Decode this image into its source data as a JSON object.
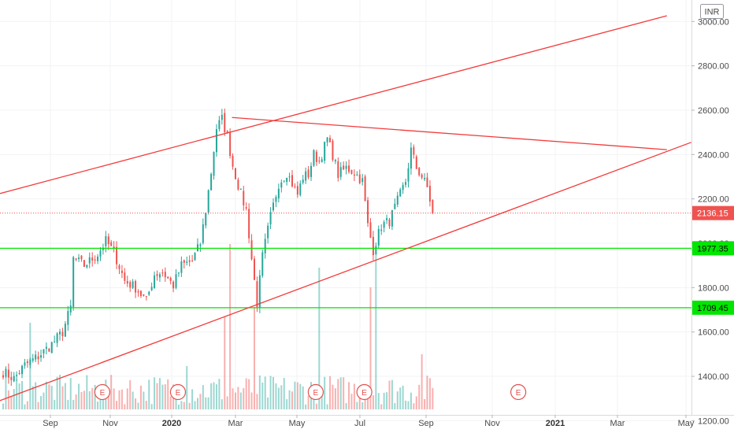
{
  "currency_badge": "INR",
  "chart_data": {
    "type": "candlestick",
    "y_axis": {
      "range": [
        1180,
        3040
      ],
      "ticks": [
        "1200.00",
        "1400.00",
        "1600.00",
        "1800.00",
        "2000.00",
        "2200.00",
        "2400.00",
        "2600.00",
        "2800.00",
        "3000.00"
      ]
    },
    "x_axis": {
      "labels": [
        {
          "text": "Sep",
          "bold": false
        },
        {
          "text": "Nov",
          "bold": false
        },
        {
          "text": "2020",
          "bold": true
        },
        {
          "text": "Mar",
          "bold": false
        },
        {
          "text": "May",
          "bold": false
        },
        {
          "text": "Jul",
          "bold": false
        },
        {
          "text": "Sep",
          "bold": false
        },
        {
          "text": "Nov",
          "bold": false
        },
        {
          "text": "2021",
          "bold": true
        },
        {
          "text": "Mar",
          "bold": false
        },
        {
          "text": "May",
          "bold": false
        }
      ]
    },
    "last_price": {
      "value": 2136.15,
      "label": "2136.15",
      "color": "#ef5350"
    },
    "horizontal_levels": [
      {
        "value": 1977.35,
        "label": "1977.35",
        "color": "#00e600"
      },
      {
        "value": 1709.45,
        "label": "1709.45",
        "color": "#00e600"
      }
    ],
    "trendlines": [
      {
        "name": "upper channel",
        "from": [
          -1,
          2224
        ],
        "to": [
          246,
          3026
        ],
        "color": "#f23b3b"
      },
      {
        "name": "lower channel",
        "from": [
          -1,
          1290
        ],
        "to": [
          255,
          2455
        ],
        "color": "#f23b3b"
      },
      {
        "name": "descending resistance",
        "from": [
          85,
          2567
        ],
        "to": [
          246,
          2422
        ],
        "color": "#f23b3b"
      }
    ],
    "earnings_markers": [
      {
        "label": "E",
        "x": 37
      },
      {
        "label": "E",
        "x": 65
      },
      {
        "label": "E",
        "x": 116
      },
      {
        "label": "E",
        "x": 134
      },
      {
        "label": "E",
        "x": 191
      }
    ],
    "volume_spikes": [
      {
        "x": 10,
        "value": 220
      },
      {
        "x": 68,
        "value": 110
      },
      {
        "x": 82,
        "value": 235
      },
      {
        "x": 84,
        "value": 420
      },
      {
        "x": 93,
        "value": 260
      },
      {
        "x": 117,
        "value": 360
      },
      {
        "x": 136,
        "value": 310
      },
      {
        "x": 138,
        "value": 390
      },
      {
        "x": 155,
        "value": 140
      }
    ],
    "price_path": [
      [
        0,
        1420
      ],
      [
        4,
        1390
      ],
      [
        8,
        1450
      ],
      [
        13,
        1490
      ],
      [
        18,
        1545
      ],
      [
        22,
        1600
      ],
      [
        25,
        1710
      ],
      [
        26,
        1930
      ],
      [
        30,
        1900
      ],
      [
        35,
        1950
      ],
      [
        38,
        2010
      ],
      [
        41,
        1960
      ],
      [
        45,
        1830
      ],
      [
        49,
        1800
      ],
      [
        53,
        1740
      ],
      [
        56,
        1860
      ],
      [
        59,
        1870
      ],
      [
        63,
        1810
      ],
      [
        66,
        1900
      ],
      [
        70,
        1920
      ],
      [
        73,
        2000
      ],
      [
        75,
        2150
      ],
      [
        77,
        2320
      ],
      [
        79,
        2520
      ],
      [
        81,
        2560
      ],
      [
        83,
        2480
      ],
      [
        85,
        2350
      ],
      [
        88,
        2220
      ],
      [
        90,
        2150
      ],
      [
        92,
        1930
      ],
      [
        94,
        1730
      ],
      [
        96,
        1940
      ],
      [
        99,
        2120
      ],
      [
        102,
        2270
      ],
      [
        105,
        2320
      ],
      [
        109,
        2220
      ],
      [
        111,
        2300
      ],
      [
        113,
        2310
      ],
      [
        115,
        2400
      ],
      [
        117,
        2370
      ],
      [
        120,
        2470
      ],
      [
        122,
        2400
      ],
      [
        124,
        2310
      ],
      [
        127,
        2340
      ],
      [
        130,
        2320
      ],
      [
        133,
        2280
      ],
      [
        135,
        2080
      ],
      [
        137,
        1970
      ],
      [
        140,
        2080
      ],
      [
        143,
        2100
      ],
      [
        146,
        2190
      ],
      [
        149,
        2280
      ],
      [
        151,
        2420
      ],
      [
        153,
        2340
      ],
      [
        155,
        2300
      ],
      [
        157,
        2250
      ],
      [
        159,
        2140
      ]
    ]
  }
}
